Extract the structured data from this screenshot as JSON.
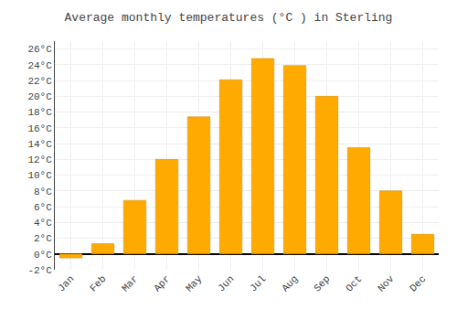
{
  "chart_data": {
    "type": "bar",
    "title": "Average monthly temperatures (°C ) in Sterling",
    "categories": [
      "Jan",
      "Feb",
      "Mar",
      "Apr",
      "May",
      "Jun",
      "Jul",
      "Aug",
      "Sep",
      "Oct",
      "Nov",
      "Dec"
    ],
    "values": [
      -0.5,
      1.3,
      6.8,
      12.0,
      17.4,
      22.1,
      24.8,
      23.9,
      20.0,
      13.5,
      8.0,
      2.5
    ],
    "color": "#FFAA00",
    "ylim": [
      -2,
      27
    ],
    "yticks": [
      {
        "value": -2,
        "label": "-2°C"
      },
      {
        "value": 0,
        "label": "0°C"
      },
      {
        "value": 2,
        "label": "2°C"
      },
      {
        "value": 4,
        "label": "4°C"
      },
      {
        "value": 6,
        "label": "6°C"
      },
      {
        "value": 8,
        "label": "8°C"
      },
      {
        "value": 10,
        "label": "10°C"
      },
      {
        "value": 12,
        "label": "12°C"
      },
      {
        "value": 14,
        "label": "14°C"
      },
      {
        "value": 16,
        "label": "16°C"
      },
      {
        "value": 18,
        "label": "18°C"
      },
      {
        "value": 20,
        "label": "20°C"
      },
      {
        "value": 22,
        "label": "22°C"
      },
      {
        "value": 24,
        "label": "24°C"
      },
      {
        "value": 26,
        "label": "26°C"
      }
    ],
    "grid": true
  }
}
